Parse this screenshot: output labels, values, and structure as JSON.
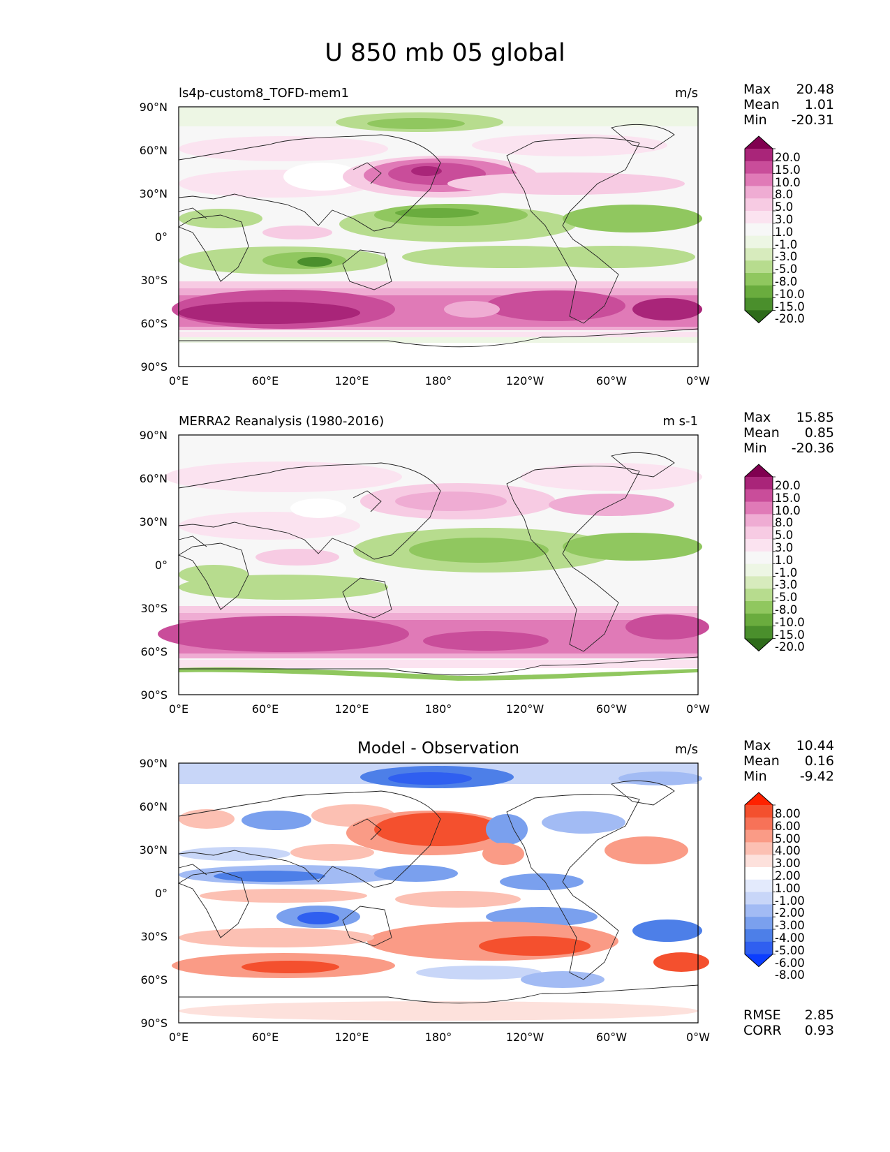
{
  "title": "U 850 mb 05 global",
  "axes": {
    "lat_ticks": [
      "90°N",
      "60°N",
      "30°N",
      "0°",
      "30°S",
      "60°S",
      "90°S"
    ],
    "lon_ticks": [
      "0°E",
      "60°E",
      "120°E",
      "180°",
      "120°W",
      "60°W",
      "0°W"
    ]
  },
  "colors": {
    "diverging_pink_green": [
      "#2e6b1a",
      "#4a8f2c",
      "#6aac3e",
      "#90c75f",
      "#b7dc8e",
      "#d7ebbd",
      "#edf6e4",
      "#f7f7f7",
      "#fbe3f0",
      "#f7cbe3",
      "#efacd3",
      "#e07ab7",
      "#c94d9a",
      "#a92579",
      "#800050"
    ],
    "diverging_red_blue": [
      "#0b3dff",
      "#2f5ff0",
      "#4d7fe8",
      "#7aa0ee",
      "#a2bbf4",
      "#c8d6f8",
      "#e3eafc",
      "#ffffff",
      "#fde1dc",
      "#fcc0b3",
      "#fa9b86",
      "#f77258",
      "#f4502e",
      "#ff2200"
    ]
  },
  "panels": [
    {
      "name": "model",
      "title_left": "ls4p-custom8_TOFD-mem1",
      "title_center": "",
      "units": "m/s",
      "stats": [
        {
          "label": "Max",
          "value": "20.48"
        },
        {
          "label": "Mean",
          "value": "1.01"
        },
        {
          "label": "Min",
          "value": "-20.31"
        }
      ],
      "colorbar_labels": [
        "20.0",
        "15.0",
        "10.0",
        "8.0",
        "5.0",
        "3.0",
        "1.0",
        "-1.0",
        "-3.0",
        "-5.0",
        "-8.0",
        "-10.0",
        "-15.0",
        "-20.0"
      ]
    },
    {
      "name": "observation",
      "title_left": "MERRA2 Reanalysis (1980-2016)",
      "title_center": "",
      "units": "m s-1",
      "stats": [
        {
          "label": "Max",
          "value": "15.85"
        },
        {
          "label": "Mean",
          "value": "0.85"
        },
        {
          "label": "Min",
          "value": "-20.36"
        }
      ],
      "colorbar_labels": [
        "20.0",
        "15.0",
        "10.0",
        "8.0",
        "5.0",
        "3.0",
        "1.0",
        "-1.0",
        "-3.0",
        "-5.0",
        "-8.0",
        "-10.0",
        "-15.0",
        "-20.0"
      ]
    },
    {
      "name": "difference",
      "title_left": "",
      "title_center": "Model - Observation",
      "units": "m/s",
      "stats": [
        {
          "label": "Max",
          "value": "10.44"
        },
        {
          "label": "Mean",
          "value": "0.16"
        },
        {
          "label": "Min",
          "value": "-9.42"
        }
      ],
      "colorbar_labels": [
        "8.00",
        "6.00",
        "5.00",
        "4.00",
        "3.00",
        "2.00",
        "1.00",
        "-1.00",
        "-2.00",
        "-3.00",
        "-4.00",
        "-5.00",
        "-6.00",
        "-8.00"
      ],
      "metrics": [
        {
          "label": "RMSE",
          "value": "2.85"
        },
        {
          "label": "CORR",
          "value": "0.93"
        }
      ]
    }
  ]
}
